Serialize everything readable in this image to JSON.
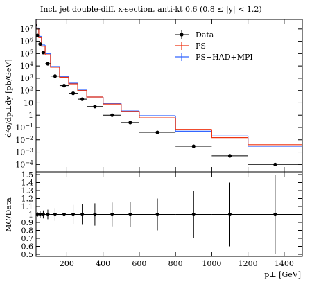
{
  "chart_data": {
    "type": "histogram",
    "title": "Incl. jet double-diff. x-section, anti-kt 0.6 (0.8 ≤ |y| < 1.2)",
    "ylabel": "d²σ/dp⊥dy [pb/GeV]",
    "xlabel": "p⊥ [GeV]",
    "log_y": true,
    "legend": "upper right",
    "bins": [
      20,
      30,
      45,
      60,
      80,
      110,
      160,
      210,
      260,
      310,
      400,
      500,
      600,
      800,
      1000,
      1200,
      1500
    ],
    "xlim": [
      30,
      1500
    ],
    "xticks": [
      200,
      400,
      600,
      800,
      1000,
      1200,
      1400
    ],
    "ylim": [
      2.5e-05,
      60000000
    ],
    "yticks": [
      {
        "value": 0.0001,
        "label": "10",
        "exponent": "−4"
      },
      {
        "value": 0.001,
        "label": "10",
        "exponent": "−3"
      },
      {
        "value": 0.01,
        "label": "10",
        "exponent": "−2"
      },
      {
        "value": 0.1,
        "label": "10",
        "exponent": "−1"
      },
      {
        "value": 1,
        "label": "1"
      },
      {
        "value": 10,
        "label": "10"
      },
      {
        "value": 100,
        "label": "10",
        "exponent": "2"
      },
      {
        "value": 1000,
        "label": "10",
        "exponent": "3"
      },
      {
        "value": 10000,
        "label": "10",
        "exponent": "4"
      },
      {
        "value": 100000,
        "label": "10",
        "exponent": "5"
      },
      {
        "value": 1000000,
        "label": "10",
        "exponent": "6"
      },
      {
        "value": 10000000,
        "label": "10",
        "exponent": "7"
      }
    ],
    "series": [
      {
        "name": "Data",
        "color": "#000000",
        "style": "points",
        "values": [
          20000000,
          3000000,
          600000,
          120000,
          15000,
          1500,
          250,
          60,
          20,
          5,
          1,
          0.25,
          0.04,
          0.003,
          0.0005,
          0.0001
        ]
      },
      {
        "name": "PS",
        "color": "#ee3311",
        "style": "steps",
        "values": [
          50000000,
          10000000,
          2000000,
          400000,
          80000,
          8000,
          1200,
          350,
          100,
          30,
          8,
          2,
          0.6,
          0.07,
          0.015,
          0.004
        ]
      },
      {
        "name": "PS+HAD+MPI",
        "color": "#3366ff",
        "style": "steps",
        "values": [
          60000000,
          12000000,
          2500000,
          500000,
          100000,
          9000,
          1400,
          400,
          110,
          30,
          9,
          2.2,
          0.9,
          0.05,
          0.02,
          0.003
        ]
      }
    ],
    "ratio": {
      "ylabel": "MC/Data",
      "ylim": [
        0.5,
        1.5
      ],
      "yticks": [
        0.5,
        0.6,
        0.7,
        0.8,
        0.9,
        1,
        1.1,
        1.2,
        1.3,
        1.4,
        1.5
      ],
      "values": [
        1,
        1,
        1,
        1,
        1,
        1,
        1,
        1,
        1,
        1,
        1,
        1,
        1,
        1,
        1,
        1
      ],
      "errors": [
        0.03,
        0.03,
        0.04,
        0.05,
        0.06,
        0.08,
        0.1,
        0.12,
        0.13,
        0.14,
        0.15,
        0.16,
        0.2,
        0.3,
        0.4,
        0.5
      ]
    }
  }
}
